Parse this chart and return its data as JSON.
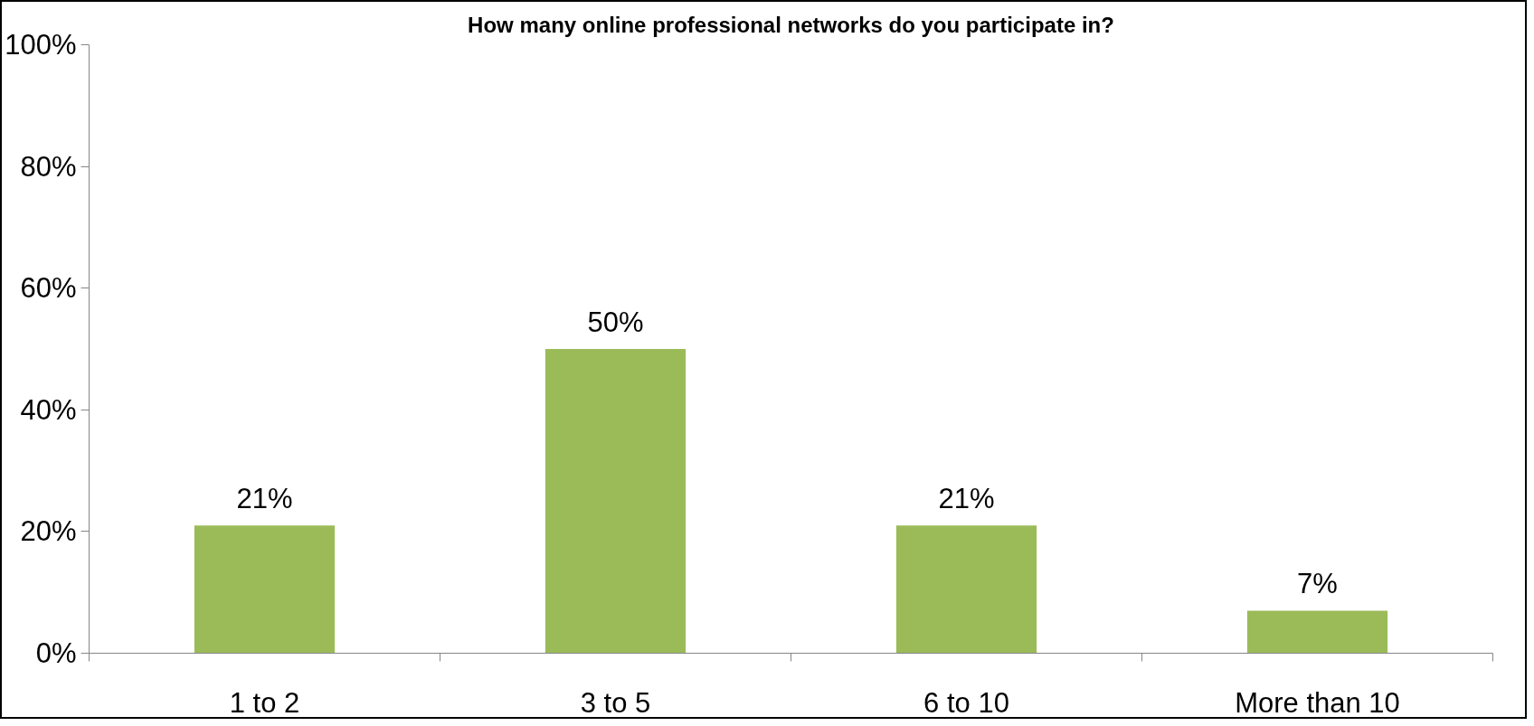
{
  "chart_data": {
    "type": "bar",
    "title": "How many online professional networks do you participate in?",
    "categories": [
      "1 to 2",
      "3 to 5",
      "6 to 10",
      "More than 10"
    ],
    "values": [
      21,
      50,
      21,
      7
    ],
    "value_labels": [
      "21%",
      "50%",
      "21%",
      "7%"
    ],
    "color": "#9bbb59",
    "ylim": [
      0,
      100
    ],
    "yticks": [
      {
        "value": 0,
        "label": "0%"
      },
      {
        "value": 20,
        "label": "20%"
      },
      {
        "value": 40,
        "label": "40%"
      },
      {
        "value": 60,
        "label": "60%"
      },
      {
        "value": 80,
        "label": "80%"
      },
      {
        "value": 100,
        "label": "100%"
      }
    ],
    "grid": false
  }
}
